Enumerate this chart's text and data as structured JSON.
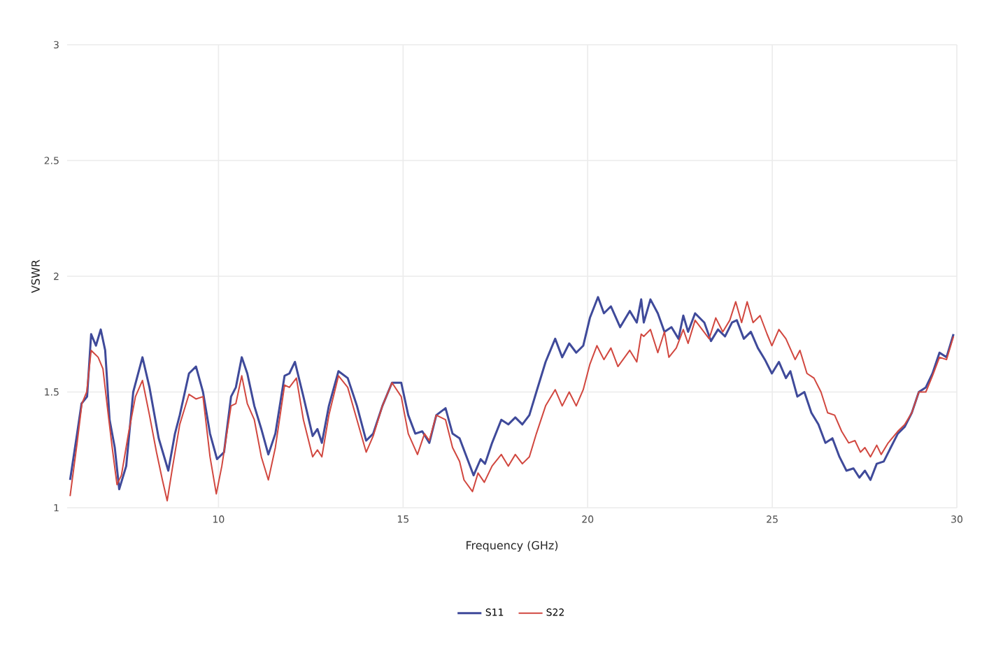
{
  "chart_data": {
    "type": "line",
    "xlabel": "Frequency (GHz)",
    "ylabel": "VSWR",
    "xlim": [
      5.9,
      30
    ],
    "xticks": [
      10,
      15,
      20,
      25,
      30
    ],
    "ylim": [
      1,
      3
    ],
    "yticks": [
      1,
      1.5,
      2,
      2.5,
      3
    ],
    "grid": true,
    "legend": "bottom",
    "series": [
      {
        "name": "S11",
        "color": "#3f4a9a",
        "x": [
          5.98,
          6.17,
          6.29,
          6.44,
          6.55,
          6.68,
          6.81,
          6.93,
          7.05,
          7.19,
          7.31,
          7.5,
          7.69,
          7.94,
          8.13,
          8.38,
          8.64,
          8.82,
          8.95,
          9.2,
          9.39,
          9.58,
          9.77,
          9.96,
          10.15,
          10.34,
          10.47,
          10.63,
          10.78,
          10.97,
          11.16,
          11.35,
          11.54,
          11.79,
          11.92,
          12.07,
          12.3,
          12.55,
          12.68,
          12.8,
          12.99,
          13.25,
          13.5,
          13.75,
          14.0,
          14.19,
          14.44,
          14.7,
          14.95,
          15.14,
          15.33,
          15.52,
          15.71,
          15.9,
          16.15,
          16.34,
          16.53,
          16.72,
          16.91,
          17.1,
          17.22,
          17.41,
          17.66,
          17.85,
          18.04,
          18.23,
          18.42,
          18.61,
          18.86,
          19.12,
          19.31,
          19.5,
          19.69,
          19.88,
          20.06,
          20.28,
          20.44,
          20.63,
          20.88,
          21.14,
          21.33,
          21.45,
          21.52,
          21.7,
          21.9,
          22.08,
          22.27,
          22.46,
          22.59,
          22.72,
          22.91,
          23.16,
          23.34,
          23.53,
          23.72,
          23.91,
          24.04,
          24.23,
          24.42,
          24.61,
          24.8,
          24.99,
          25.18,
          25.37,
          25.49,
          25.68,
          25.87,
          26.06,
          26.25,
          26.44,
          26.63,
          26.82,
          27.01,
          27.2,
          27.36,
          27.51,
          27.66,
          27.83,
          28.02,
          28.21,
          28.4,
          28.59,
          28.78,
          28.97,
          29.16,
          29.34,
          29.53,
          29.72,
          29.91
        ],
        "values": [
          1.12,
          1.32,
          1.45,
          1.48,
          1.75,
          1.7,
          1.77,
          1.68,
          1.38,
          1.26,
          1.08,
          1.18,
          1.5,
          1.65,
          1.52,
          1.3,
          1.16,
          1.32,
          1.4,
          1.58,
          1.61,
          1.5,
          1.32,
          1.21,
          1.24,
          1.48,
          1.52,
          1.65,
          1.58,
          1.44,
          1.34,
          1.23,
          1.32,
          1.57,
          1.58,
          1.63,
          1.48,
          1.31,
          1.34,
          1.28,
          1.44,
          1.59,
          1.56,
          1.44,
          1.29,
          1.32,
          1.44,
          1.54,
          1.54,
          1.4,
          1.32,
          1.33,
          1.28,
          1.4,
          1.43,
          1.32,
          1.3,
          1.22,
          1.14,
          1.21,
          1.19,
          1.28,
          1.38,
          1.36,
          1.39,
          1.36,
          1.4,
          1.5,
          1.63,
          1.73,
          1.65,
          1.71,
          1.67,
          1.7,
          1.82,
          1.91,
          1.84,
          1.87,
          1.78,
          1.85,
          1.8,
          1.9,
          1.8,
          1.9,
          1.84,
          1.76,
          1.78,
          1.73,
          1.83,
          1.76,
          1.84,
          1.8,
          1.72,
          1.77,
          1.74,
          1.8,
          1.81,
          1.73,
          1.76,
          1.69,
          1.64,
          1.58,
          1.63,
          1.56,
          1.59,
          1.48,
          1.5,
          1.41,
          1.36,
          1.28,
          1.3,
          1.22,
          1.16,
          1.17,
          1.13,
          1.16,
          1.12,
          1.19,
          1.2,
          1.26,
          1.32,
          1.35,
          1.41,
          1.5,
          1.52,
          1.58,
          1.67,
          1.65,
          1.75
        ]
      },
      {
        "name": "S22",
        "color": "#d1473f",
        "x": [
          5.98,
          6.17,
          6.3,
          6.43,
          6.55,
          6.74,
          6.87,
          7.0,
          7.12,
          7.25,
          7.37,
          7.56,
          7.75,
          7.94,
          8.13,
          8.32,
          8.48,
          8.61,
          8.76,
          8.95,
          9.2,
          9.39,
          9.58,
          9.77,
          9.94,
          10.09,
          10.34,
          10.47,
          10.63,
          10.78,
          10.97,
          11.16,
          11.35,
          11.54,
          11.79,
          11.92,
          12.11,
          12.3,
          12.55,
          12.68,
          12.8,
          12.99,
          13.25,
          13.5,
          13.75,
          14.0,
          14.19,
          14.44,
          14.7,
          14.95,
          15.14,
          15.39,
          15.58,
          15.71,
          15.9,
          16.15,
          16.34,
          16.53,
          16.65,
          16.88,
          17.03,
          17.2,
          17.41,
          17.66,
          17.85,
          18.04,
          18.23,
          18.42,
          18.61,
          18.86,
          19.12,
          19.31,
          19.5,
          19.69,
          19.88,
          20.06,
          20.25,
          20.44,
          20.63,
          20.82,
          21.14,
          21.33,
          21.45,
          21.52,
          21.7,
          21.9,
          22.08,
          22.2,
          22.4,
          22.59,
          22.72,
          22.91,
          23.1,
          23.29,
          23.47,
          23.66,
          23.85,
          24.01,
          24.17,
          24.32,
          24.48,
          24.67,
          24.86,
          24.99,
          25.18,
          25.37,
          25.62,
          25.75,
          25.94,
          26.13,
          26.32,
          26.5,
          26.69,
          26.88,
          27.07,
          27.24,
          27.39,
          27.51,
          27.66,
          27.83,
          27.95,
          28.14,
          28.4,
          28.59,
          28.78,
          28.97,
          29.16,
          29.34,
          29.53,
          29.72,
          29.91
        ],
        "values": [
          1.05,
          1.28,
          1.45,
          1.5,
          1.68,
          1.65,
          1.6,
          1.42,
          1.26,
          1.1,
          1.14,
          1.32,
          1.48,
          1.55,
          1.4,
          1.24,
          1.12,
          1.03,
          1.18,
          1.36,
          1.49,
          1.47,
          1.48,
          1.22,
          1.06,
          1.18,
          1.44,
          1.45,
          1.57,
          1.45,
          1.38,
          1.22,
          1.12,
          1.26,
          1.53,
          1.52,
          1.56,
          1.38,
          1.22,
          1.25,
          1.22,
          1.4,
          1.57,
          1.52,
          1.38,
          1.24,
          1.31,
          1.44,
          1.54,
          1.48,
          1.32,
          1.23,
          1.32,
          1.29,
          1.4,
          1.38,
          1.26,
          1.2,
          1.12,
          1.07,
          1.15,
          1.11,
          1.18,
          1.23,
          1.18,
          1.23,
          1.19,
          1.22,
          1.32,
          1.44,
          1.51,
          1.44,
          1.5,
          1.44,
          1.51,
          1.62,
          1.7,
          1.64,
          1.69,
          1.61,
          1.68,
          1.63,
          1.75,
          1.74,
          1.77,
          1.67,
          1.76,
          1.65,
          1.69,
          1.77,
          1.71,
          1.81,
          1.77,
          1.73,
          1.82,
          1.76,
          1.81,
          1.89,
          1.8,
          1.89,
          1.8,
          1.83,
          1.75,
          1.7,
          1.77,
          1.73,
          1.64,
          1.68,
          1.58,
          1.56,
          1.5,
          1.41,
          1.4,
          1.33,
          1.28,
          1.29,
          1.24,
          1.26,
          1.22,
          1.27,
          1.23,
          1.28,
          1.33,
          1.36,
          1.41,
          1.5,
          1.5,
          1.57,
          1.65,
          1.64,
          1.74
        ]
      }
    ]
  }
}
